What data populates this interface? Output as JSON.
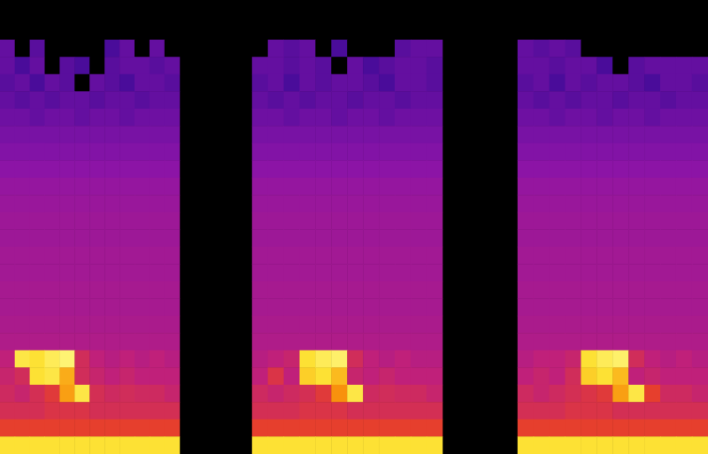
{
  "chart_data": [
    {
      "type": "heatmap",
      "tick_labels": false,
      "color_range": [
        0,
        100
      ],
      "categories": [
        null,
        null,
        null,
        null,
        null,
        null,
        null,
        null,
        null,
        null,
        null,
        null
      ],
      "y_categories": [
        null,
        null,
        null,
        null,
        null,
        null,
        null,
        null,
        null,
        null,
        null,
        null,
        null,
        null,
        null,
        null,
        null,
        null,
        null,
        null,
        null,
        null,
        null,
        null
      ],
      "cells": [
        [
          30,
          0,
          28,
          0,
          0,
          0,
          0,
          25,
          30,
          0,
          30,
          0
        ],
        [
          30,
          25,
          30,
          0,
          28,
          25,
          0,
          28,
          30,
          30,
          28,
          30
        ],
        [
          28,
          30,
          25,
          30,
          28,
          0,
          30,
          28,
          25,
          30,
          30,
          28
        ],
        [
          30,
          28,
          30,
          28,
          30,
          30,
          28,
          30,
          30,
          28,
          30,
          30
        ],
        [
          32,
          32,
          30,
          32,
          32,
          30,
          32,
          32,
          30,
          32,
          32,
          32
        ],
        [
          34,
          34,
          34,
          34,
          34,
          34,
          34,
          34,
          34,
          34,
          34,
          34
        ],
        [
          36,
          36,
          36,
          36,
          36,
          36,
          36,
          36,
          36,
          36,
          36,
          36
        ],
        [
          38,
          38,
          38,
          38,
          38,
          38,
          38,
          38,
          38,
          38,
          38,
          38
        ],
        [
          40,
          40,
          40,
          40,
          40,
          40,
          40,
          40,
          40,
          40,
          40,
          40
        ],
        [
          41,
          41,
          41,
          41,
          41,
          41,
          41,
          41,
          41,
          41,
          41,
          41
        ],
        [
          42,
          42,
          42,
          42,
          42,
          42,
          42,
          42,
          42,
          42,
          42,
          42
        ],
        [
          42,
          42,
          42,
          42,
          42,
          42,
          42,
          42,
          42,
          42,
          42,
          42
        ],
        [
          43,
          43,
          43,
          43,
          43,
          43,
          43,
          43,
          43,
          43,
          43,
          43
        ],
        [
          43,
          43,
          43,
          43,
          43,
          43,
          43,
          43,
          43,
          43,
          43,
          43
        ],
        [
          44,
          44,
          44,
          44,
          44,
          44,
          44,
          44,
          44,
          44,
          44,
          44
        ],
        [
          44,
          44,
          44,
          44,
          44,
          44,
          44,
          44,
          44,
          44,
          44,
          44
        ],
        [
          45,
          45,
          45,
          45,
          45,
          45,
          45,
          45,
          45,
          45,
          45,
          45
        ],
        [
          46,
          46,
          46,
          46,
          46,
          46,
          46,
          46,
          46,
          46,
          46,
          46
        ],
        [
          50,
          90,
          88,
          92,
          95,
          55,
          50,
          48,
          50,
          48,
          50,
          48
        ],
        [
          52,
          55,
          88,
          90,
          80,
          55,
          52,
          50,
          52,
          50,
          50,
          50
        ],
        [
          54,
          52,
          56,
          60,
          78,
          90,
          56,
          54,
          55,
          54,
          54,
          52
        ],
        [
          56,
          56,
          56,
          58,
          58,
          58,
          56,
          56,
          56,
          56,
          56,
          56
        ],
        [
          62,
          62,
          62,
          62,
          62,
          62,
          62,
          62,
          62,
          62,
          62,
          62
        ],
        [
          88,
          88,
          88,
          88,
          88,
          88,
          88,
          88,
          88,
          88,
          88,
          88
        ]
      ]
    },
    {
      "type": "heatmap",
      "tick_labels": false,
      "color_range": [
        0,
        100
      ],
      "categories": [
        null,
        null,
        null,
        null,
        null,
        null,
        null,
        null,
        null,
        null,
        null,
        null
      ],
      "y_categories": [
        null,
        null,
        null,
        null,
        null,
        null,
        null,
        null,
        null,
        null,
        null,
        null,
        null,
        null,
        null,
        null,
        null,
        null,
        null,
        null,
        null,
        null,
        null,
        null
      ],
      "cells": [
        [
          0,
          30,
          28,
          30,
          0,
          25,
          0,
          0,
          0,
          28,
          30,
          30
        ],
        [
          30,
          30,
          28,
          30,
          28,
          0,
          30,
          25,
          28,
          30,
          30,
          28
        ],
        [
          28,
          30,
          25,
          30,
          28,
          30,
          30,
          28,
          25,
          30,
          30,
          28
        ],
        [
          30,
          28,
          30,
          28,
          30,
          30,
          28,
          30,
          30,
          28,
          30,
          30
        ],
        [
          32,
          32,
          30,
          32,
          32,
          30,
          32,
          32,
          30,
          32,
          32,
          32
        ],
        [
          34,
          34,
          34,
          34,
          34,
          34,
          34,
          34,
          34,
          34,
          34,
          34
        ],
        [
          36,
          36,
          36,
          36,
          36,
          36,
          36,
          36,
          36,
          36,
          36,
          36
        ],
        [
          38,
          38,
          38,
          38,
          38,
          38,
          38,
          38,
          38,
          38,
          38,
          38
        ],
        [
          40,
          40,
          40,
          40,
          40,
          40,
          40,
          40,
          40,
          40,
          40,
          40
        ],
        [
          41,
          41,
          41,
          41,
          41,
          41,
          41,
          41,
          41,
          41,
          41,
          41
        ],
        [
          42,
          42,
          42,
          42,
          42,
          42,
          42,
          42,
          42,
          42,
          42,
          42
        ],
        [
          42,
          42,
          42,
          42,
          42,
          42,
          42,
          42,
          42,
          42,
          42,
          42
        ],
        [
          43,
          43,
          43,
          43,
          43,
          43,
          43,
          43,
          43,
          43,
          43,
          43
        ],
        [
          43,
          43,
          43,
          43,
          43,
          43,
          43,
          43,
          43,
          43,
          43,
          43
        ],
        [
          44,
          44,
          44,
          44,
          44,
          44,
          44,
          44,
          44,
          44,
          44,
          44
        ],
        [
          44,
          44,
          44,
          44,
          44,
          44,
          44,
          44,
          44,
          44,
          44,
          44
        ],
        [
          45,
          45,
          45,
          45,
          45,
          45,
          45,
          45,
          45,
          45,
          45,
          45
        ],
        [
          46,
          46,
          46,
          46,
          46,
          46,
          46,
          46,
          46,
          46,
          46,
          46
        ],
        [
          48,
          50,
          52,
          88,
          92,
          94,
          55,
          50,
          48,
          50,
          48,
          48
        ],
        [
          50,
          58,
          50,
          85,
          88,
          82,
          52,
          50,
          52,
          50,
          50,
          50
        ],
        [
          54,
          52,
          54,
          56,
          60,
          76,
          90,
          54,
          55,
          54,
          54,
          52
        ],
        [
          56,
          56,
          56,
          58,
          58,
          58,
          56,
          56,
          56,
          56,
          56,
          56
        ],
        [
          62,
          62,
          62,
          62,
          62,
          62,
          62,
          62,
          62,
          62,
          62,
          62
        ],
        [
          88,
          88,
          88,
          88,
          88,
          88,
          88,
          88,
          88,
          88,
          88,
          88
        ]
      ]
    },
    {
      "type": "heatmap",
      "tick_labels": false,
      "color_range": [
        0,
        100
      ],
      "categories": [
        null,
        null,
        null,
        null,
        null,
        null,
        null,
        null,
        null,
        null,
        null,
        null
      ],
      "y_categories": [
        null,
        null,
        null,
        null,
        null,
        null,
        null,
        null,
        null,
        null,
        null,
        null,
        null,
        null,
        null,
        null,
        null,
        null,
        null,
        null,
        null,
        null,
        null,
        null
      ],
      "cells": [
        [
          30,
          28,
          30,
          28,
          0,
          0,
          0,
          0,
          0,
          0,
          0,
          0
        ],
        [
          30,
          30,
          28,
          30,
          30,
          25,
          0,
          28,
          30,
          30,
          30,
          30
        ],
        [
          28,
          30,
          25,
          30,
          28,
          30,
          30,
          28,
          25,
          30,
          30,
          28
        ],
        [
          30,
          28,
          30,
          28,
          30,
          30,
          28,
          30,
          30,
          28,
          30,
          30
        ],
        [
          32,
          32,
          30,
          32,
          32,
          30,
          32,
          32,
          30,
          32,
          32,
          32
        ],
        [
          34,
          34,
          34,
          34,
          34,
          34,
          34,
          34,
          34,
          34,
          34,
          34
        ],
        [
          36,
          36,
          36,
          36,
          36,
          36,
          36,
          36,
          36,
          36,
          36,
          36
        ],
        [
          38,
          38,
          38,
          38,
          38,
          38,
          38,
          38,
          38,
          38,
          38,
          38
        ],
        [
          40,
          40,
          40,
          40,
          40,
          40,
          40,
          40,
          40,
          40,
          40,
          40
        ],
        [
          41,
          41,
          41,
          41,
          41,
          41,
          41,
          41,
          41,
          41,
          41,
          41
        ],
        [
          42,
          42,
          42,
          42,
          42,
          42,
          42,
          42,
          42,
          42,
          42,
          42
        ],
        [
          42,
          42,
          42,
          42,
          42,
          42,
          42,
          42,
          42,
          42,
          42,
          42
        ],
        [
          43,
          43,
          43,
          43,
          43,
          43,
          43,
          43,
          43,
          43,
          43,
          43
        ],
        [
          43,
          43,
          43,
          43,
          43,
          43,
          43,
          43,
          43,
          43,
          43,
          43
        ],
        [
          44,
          44,
          44,
          44,
          44,
          44,
          44,
          44,
          44,
          44,
          44,
          44
        ],
        [
          44,
          44,
          44,
          44,
          44,
          44,
          44,
          44,
          44,
          44,
          44,
          44
        ],
        [
          45,
          45,
          45,
          45,
          45,
          45,
          45,
          45,
          45,
          45,
          45,
          45
        ],
        [
          46,
          46,
          46,
          46,
          46,
          46,
          46,
          46,
          46,
          46,
          46,
          46
        ],
        [
          48,
          50,
          50,
          52,
          88,
          92,
          94,
          55,
          50,
          48,
          50,
          48
        ],
        [
          50,
          52,
          50,
          55,
          85,
          88,
          82,
          50,
          52,
          50,
          50,
          50
        ],
        [
          54,
          52,
          54,
          56,
          58,
          60,
          78,
          90,
          62,
          54,
          54,
          52
        ],
        [
          56,
          56,
          56,
          58,
          58,
          58,
          56,
          56,
          56,
          56,
          56,
          56
        ],
        [
          62,
          62,
          62,
          62,
          62,
          62,
          62,
          62,
          62,
          62,
          62,
          62
        ],
        [
          88,
          88,
          88,
          88,
          88,
          88,
          88,
          88,
          88,
          88,
          88,
          88
        ]
      ]
    }
  ]
}
